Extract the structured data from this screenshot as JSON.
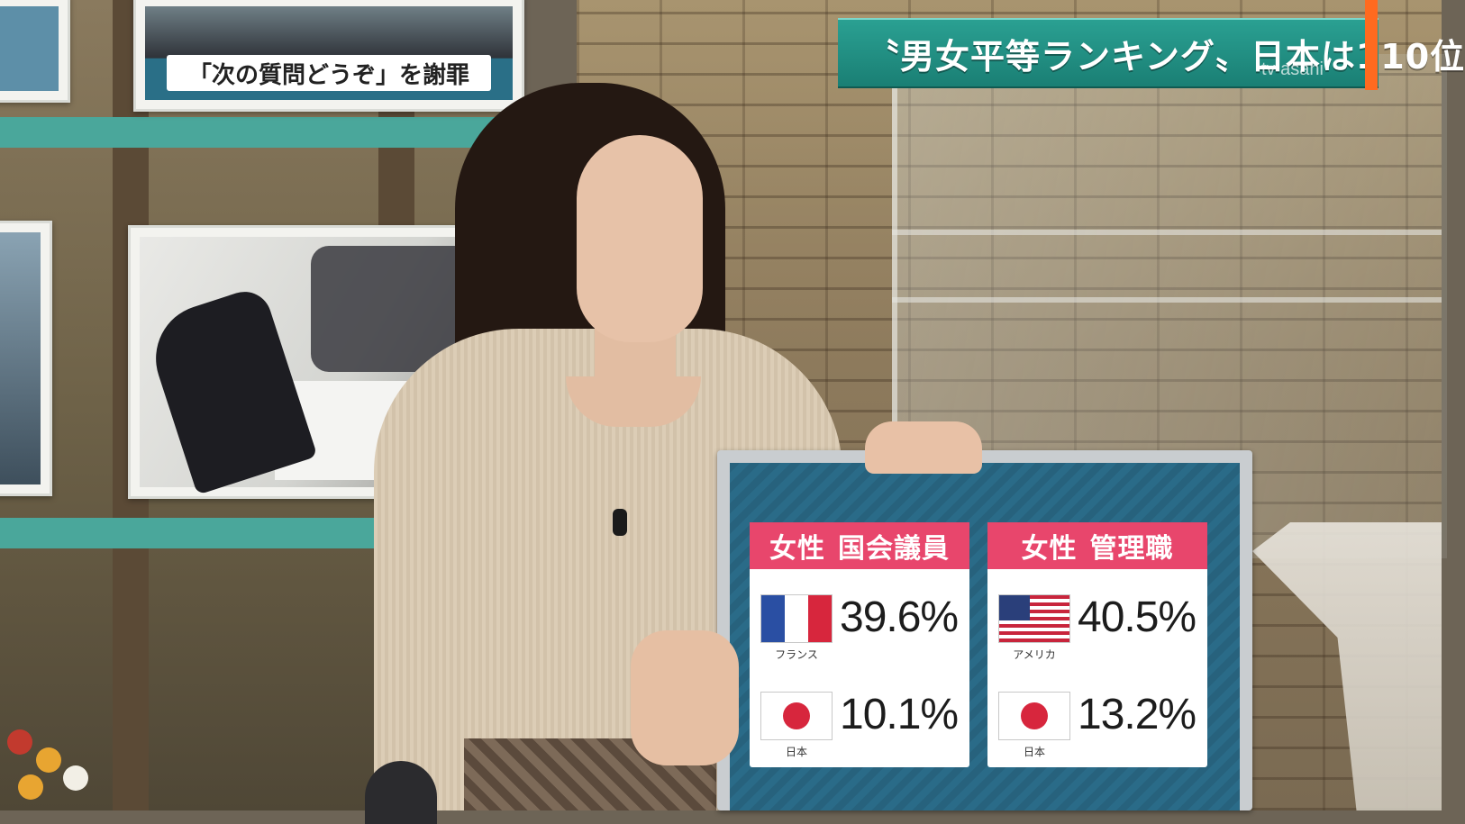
{
  "ticker": {
    "headline": "〝男女平等ランキング〟日本は110位",
    "watermark": "tv asahi"
  },
  "background_monitors": {
    "top_caption": "「次の質問どうぞ」を謝罪"
  },
  "board": {
    "cards": [
      {
        "title_part1": "女性",
        "title_part2": "国会議員",
        "rows": [
          {
            "flag": "france-flag",
            "label": "フランス",
            "value": "39.6%"
          },
          {
            "flag": "japan-flag",
            "label": "日本",
            "value": "10.1%"
          }
        ]
      },
      {
        "title_part1": "女性",
        "title_part2": "管理職",
        "rows": [
          {
            "flag": "usa-flag",
            "label": "アメリカ",
            "value": "40.5%"
          },
          {
            "flag": "japan-flag",
            "label": "日本",
            "value": "13.2%"
          }
        ]
      }
    ],
    "colors": {
      "header": "#e8466c",
      "board_bg": "#27627d"
    }
  },
  "accent_color": "#ff6a1f",
  "ticker_color": "#1a7f74"
}
